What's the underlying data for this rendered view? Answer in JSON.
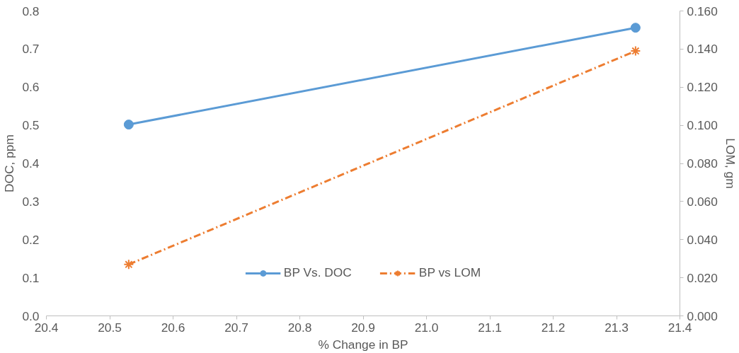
{
  "chart_data": {
    "type": "line",
    "xlabel": "% Change in BP",
    "ylabel": "DOC, ppm",
    "y2label": "LOM, gm",
    "x": [
      20.53,
      21.33
    ],
    "series": [
      {
        "name": "BP Vs. DOC",
        "color": "#5b9bd5",
        "values": [
          0.502,
          0.756
        ],
        "marker": "circle",
        "line_style": "solid"
      },
      {
        "name": "BP vs LOM",
        "color": "#ed7d31",
        "values": [
          0.027,
          0.139
        ],
        "marker": "cross",
        "line_style": "dashdot",
        "axis": "y2"
      }
    ],
    "xlim": [
      20.4,
      21.4
    ],
    "xticks": [
      20.4,
      20.5,
      20.6,
      20.7,
      20.8,
      20.9,
      {
        "value": 21.0,
        "label": "21.0"
      },
      21.1,
      21.2,
      21.3,
      21.4
    ],
    "ylim": [
      0,
      0.8
    ],
    "yticks": [
      {
        "value": 0,
        "label": "0.0"
      },
      0.1,
      0.2,
      0.3,
      0.4,
      0.5,
      0.6,
      0.7,
      0.8
    ],
    "y2lim": [
      0,
      0.16
    ],
    "y2ticks": [
      {
        "value": 0,
        "label": "0.000"
      },
      {
        "value": 0.02,
        "label": "0.020"
      },
      {
        "value": 0.04,
        "label": "0.040"
      },
      {
        "value": 0.06,
        "label": "0.060"
      },
      {
        "value": 0.08,
        "label": "0.080"
      },
      {
        "value": 0.1,
        "label": "0.100"
      },
      {
        "value": 0.12,
        "label": "0.120"
      },
      {
        "value": 0.14,
        "label": "0.140"
      },
      {
        "value": 0.16,
        "label": "0.160"
      }
    ],
    "grid": false,
    "legend": "bottom"
  }
}
